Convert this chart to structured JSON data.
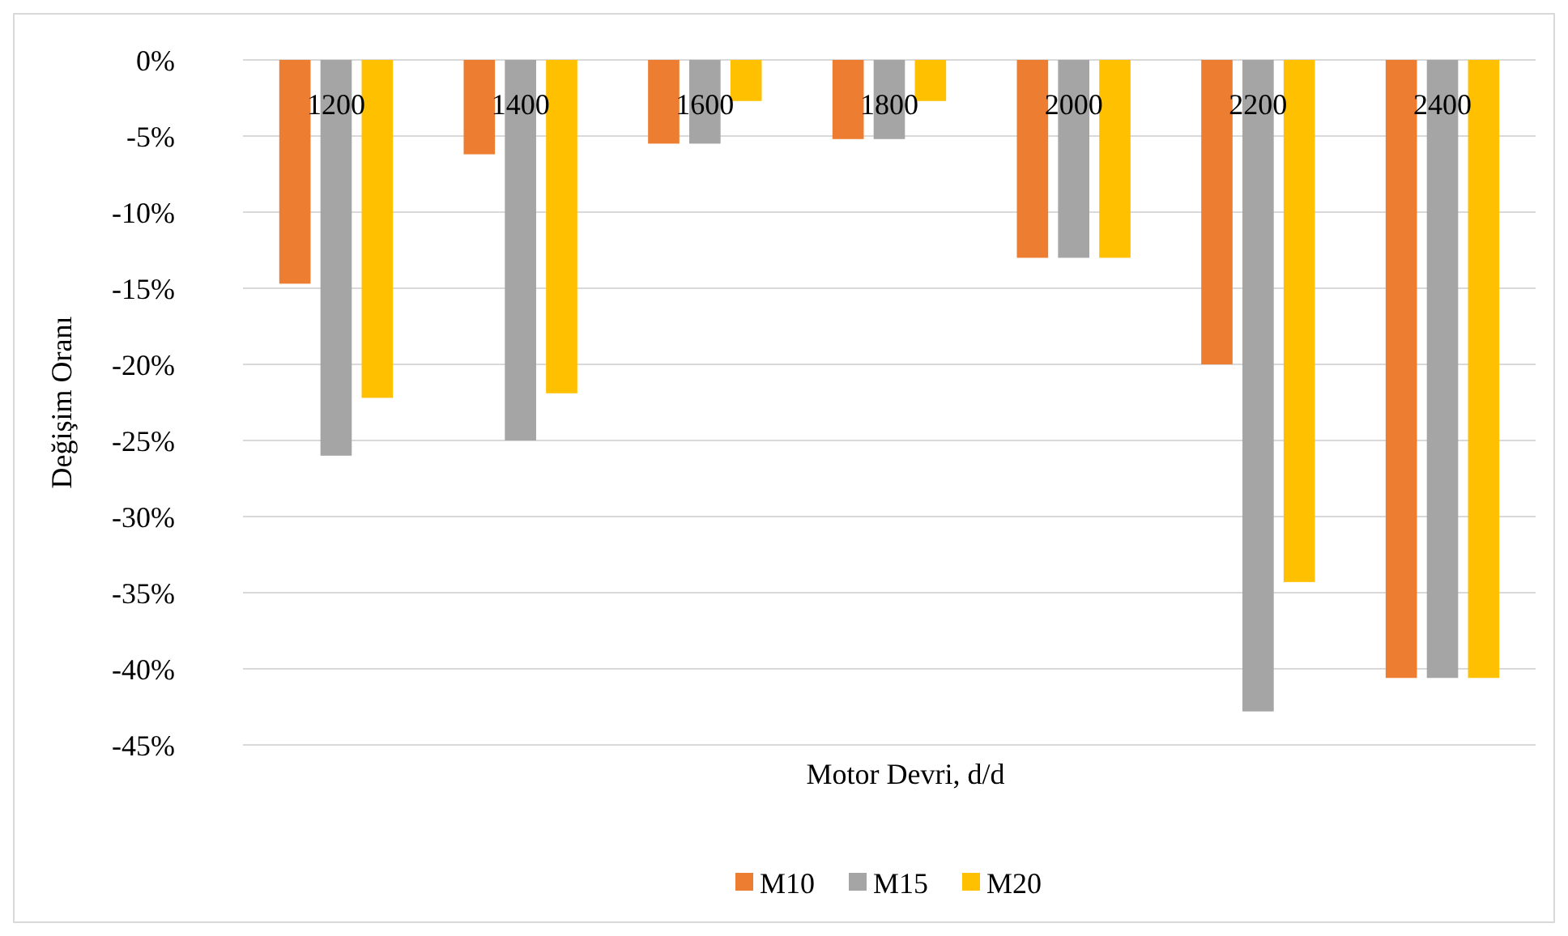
{
  "chart_data": {
    "type": "bar",
    "xlabel": "Motor Devri, d/d",
    "ylabel": "Değişim Oranı",
    "categories": [
      "1200",
      "1400",
      "1600",
      "1800",
      "2000",
      "2200",
      "2400"
    ],
    "series": [
      {
        "name": "M10",
        "color": "#ed7d31",
        "values": [
          -14.7,
          -6.2,
          -5.5,
          -5.2,
          -13.0,
          -20.0,
          -40.6
        ]
      },
      {
        "name": "M15",
        "color": "#a5a5a5",
        "values": [
          -26.0,
          -25.0,
          -5.5,
          -5.2,
          -13.0,
          -42.8,
          -40.6
        ]
      },
      {
        "name": "M20",
        "color": "#ffc000",
        "values": [
          -22.2,
          -21.9,
          -2.7,
          -2.7,
          -13.0,
          -34.3,
          -40.6
        ]
      }
    ],
    "ylim": [
      -45,
      0
    ],
    "yticks": [
      {
        "value": 0,
        "label": "0%"
      },
      {
        "value": -5,
        "label": "-5%"
      },
      {
        "value": -10,
        "label": "-10%"
      },
      {
        "value": -15,
        "label": "-15%"
      },
      {
        "value": -20,
        "label": "-20%"
      },
      {
        "value": -25,
        "label": "-25%"
      },
      {
        "value": -30,
        "label": "-30%"
      },
      {
        "value": -35,
        "label": "-35%"
      },
      {
        "value": -40,
        "label": "-40%"
      },
      {
        "value": -45,
        "label": "-45%"
      }
    ],
    "grid": "y",
    "legend": "bottom"
  }
}
